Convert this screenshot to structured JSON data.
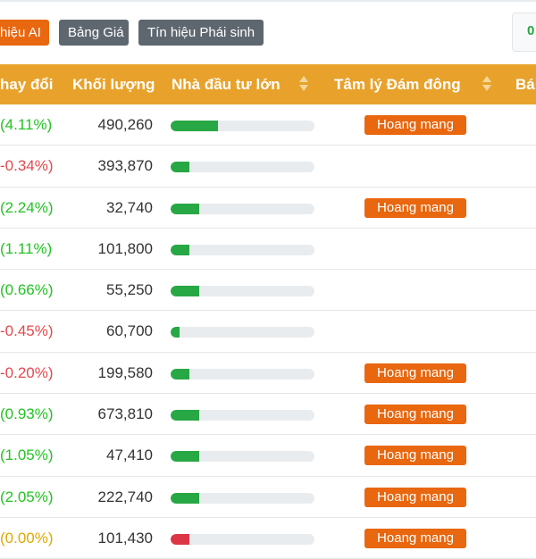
{
  "tabs": [
    {
      "label": "hiệu AI"
    },
    {
      "label": "Bảng Giá"
    },
    {
      "label": "Tín hiệu Phái sinh"
    }
  ],
  "right_box_text": "0",
  "columns": {
    "change": "hay đổi",
    "volume": "Khối lượng",
    "investor": "Nhà đầu tư lớn",
    "sentiment": "Tâm lý Đám đông",
    "next": "Bá"
  },
  "colors": {
    "positive": "#22c322",
    "negative": "#e5484d",
    "neutral": "#e0a800",
    "bar_up": "#28a745",
    "bar_down": "#dc3545",
    "badge": "#e8670f",
    "header": "#e8a22b"
  },
  "rows": [
    {
      "change": "(4.11%)",
      "dir": "up",
      "volume": "490,260",
      "investor_pct": 33,
      "sentiment": "Hoang mang"
    },
    {
      "change": "-0.34%)",
      "dir": "down",
      "volume": "393,870",
      "investor_pct": 13,
      "sentiment": ""
    },
    {
      "change": "(2.24%)",
      "dir": "up",
      "volume": "32,740",
      "investor_pct": 20,
      "sentiment": "Hoang mang"
    },
    {
      "change": "(1.11%)",
      "dir": "up",
      "volume": "101,800",
      "investor_pct": 13,
      "sentiment": ""
    },
    {
      "change": "(0.66%)",
      "dir": "up",
      "volume": "55,250",
      "investor_pct": 20,
      "sentiment": ""
    },
    {
      "change": "-0.45%)",
      "dir": "down",
      "volume": "60,700",
      "investor_pct": 6,
      "sentiment": ""
    },
    {
      "change": "-0.20%)",
      "dir": "down",
      "volume": "199,580",
      "investor_pct": 13,
      "sentiment": "Hoang mang"
    },
    {
      "change": "(0.93%)",
      "dir": "up",
      "volume": "673,810",
      "investor_pct": 20,
      "sentiment": "Hoang mang"
    },
    {
      "change": "(1.05%)",
      "dir": "up",
      "volume": "47,410",
      "investor_pct": 20,
      "sentiment": "Hoang mang"
    },
    {
      "change": "(2.05%)",
      "dir": "up",
      "volume": "222,740",
      "investor_pct": 20,
      "sentiment": "Hoang mang"
    },
    {
      "change": "(0.00%)",
      "dir": "neutral",
      "volume": "101,430",
      "investor_pct": 13,
      "bar": "down",
      "sentiment": "Hoang mang"
    }
  ]
}
